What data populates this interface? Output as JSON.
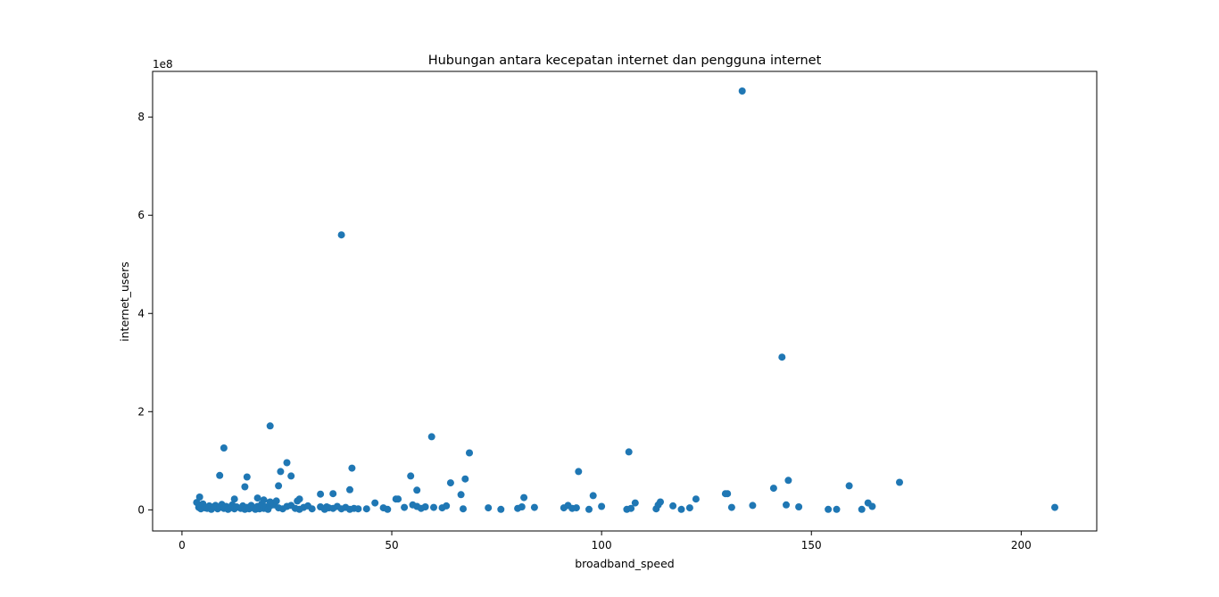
{
  "chart_data": {
    "type": "scatter",
    "title": "Hubungan antara kecepatan internet dan pengguna internet",
    "xlabel": "broadband_speed",
    "ylabel": "internet_users",
    "y_offset_text": "1e8",
    "xlim": [
      -7,
      218
    ],
    "ylim": [
      -0.43,
      8.93
    ],
    "x_ticks": [
      0,
      50,
      100,
      150,
      200
    ],
    "x_tick_labels": [
      "0",
      "50",
      "100",
      "150",
      "200"
    ],
    "y_ticks": [
      0,
      2,
      4,
      6,
      8
    ],
    "y_tick_labels": [
      "0",
      "2",
      "4",
      "6",
      "8"
    ],
    "grid": false,
    "legend": "none",
    "marker_color": "#1f77b4",
    "series": [
      {
        "x": [
          3.5,
          4.0,
          4.2,
          4.5,
          5.0,
          5.5,
          6.0,
          6.5,
          7.0,
          7.5,
          8.0,
          8.5,
          9.0,
          9.5,
          10.0,
          10.5,
          11.0,
          11.5,
          12.0,
          12.5,
          13.0,
          14.0,
          14.5,
          15.0,
          15.5,
          16.0,
          16.5,
          17.0,
          17.5,
          18.0,
          18.5,
          19.0,
          19.5,
          20.0,
          20.5,
          21.0,
          22.0,
          23.0,
          24.0,
          25.0,
          26.0,
          27.0,
          28.0,
          29.0,
          30.0,
          31.0,
          33.0,
          34.0,
          35.0,
          36.0,
          37.0,
          38.0,
          39.0,
          40.0,
          41.0,
          44.0,
          46.0,
          48.0,
          49.0,
          51.0,
          53.0,
          55.0,
          56.0,
          57.0,
          58.0,
          60.0,
          62.0,
          63.0,
          67.0,
          73.0,
          76.0,
          80.0,
          81.0,
          84.0,
          91.0,
          92.0,
          93.0,
          94.0,
          97.0,
          100.0,
          106.0,
          107.0,
          108.0,
          113.0,
          114.0,
          117.0,
          119.0,
          121.0,
          130.0,
          131.0,
          136.0,
          144.0,
          147.0,
          154.0,
          156.0,
          162.0,
          163.5,
          164.5,
          208.0,
          4.2,
          9.0,
          10.0,
          12.5,
          15.0,
          15.5,
          18.0,
          21.0,
          23.0,
          23.5,
          25.0,
          26.0,
          28.0,
          33.0,
          36.0,
          40.0,
          40.5,
          51.5,
          54.5,
          56.0,
          59.5,
          64.0,
          66.5,
          67.5,
          68.5,
          81.5,
          94.5,
          98.0,
          106.5,
          113.5,
          122.5,
          129.5,
          141.0,
          144.5,
          159.0,
          171.0,
          21.0,
          38.0,
          143.0,
          133.5,
          19.5,
          22.5,
          27.5,
          34.5,
          42.0
        ],
        "y": [
          0.15,
          0.05,
          0.1,
          0.02,
          0.12,
          0.04,
          0.03,
          0.08,
          0.01,
          0.06,
          0.09,
          0.02,
          0.05,
          0.11,
          0.03,
          0.07,
          0.01,
          0.04,
          0.1,
          0.02,
          0.06,
          0.03,
          0.08,
          0.01,
          0.05,
          0.02,
          0.09,
          0.04,
          0.01,
          0.07,
          0.02,
          0.12,
          0.03,
          0.06,
          0.01,
          0.08,
          0.1,
          0.04,
          0.02,
          0.07,
          0.09,
          0.03,
          0.01,
          0.05,
          0.08,
          0.02,
          0.06,
          0.01,
          0.04,
          0.03,
          0.07,
          0.02,
          0.05,
          0.01,
          0.03,
          0.02,
          0.14,
          0.04,
          0.01,
          0.22,
          0.05,
          0.1,
          0.07,
          0.03,
          0.06,
          0.05,
          0.04,
          0.08,
          0.02,
          0.04,
          0.01,
          0.03,
          0.06,
          0.05,
          0.04,
          0.09,
          0.03,
          0.04,
          0.01,
          0.07,
          0.01,
          0.03,
          0.14,
          0.02,
          0.16,
          0.08,
          0.01,
          0.04,
          0.33,
          0.05,
          0.09,
          0.1,
          0.06,
          0.01,
          0.01,
          0.01,
          0.14,
          0.07,
          0.05,
          0.26,
          0.7,
          1.26,
          0.22,
          0.47,
          0.67,
          0.24,
          0.16,
          0.49,
          0.78,
          0.96,
          0.69,
          0.22,
          0.32,
          0.33,
          0.41,
          0.85,
          0.22,
          0.69,
          0.4,
          1.49,
          0.55,
          0.31,
          0.63,
          1.16,
          0.25,
          0.78,
          0.29,
          1.18,
          0.1,
          0.22,
          0.33,
          0.44,
          0.6,
          0.49,
          0.56,
          1.71,
          5.6,
          3.11,
          8.53,
          0.2,
          0.18,
          0.18,
          0.06,
          0.02
        ]
      }
    ]
  }
}
